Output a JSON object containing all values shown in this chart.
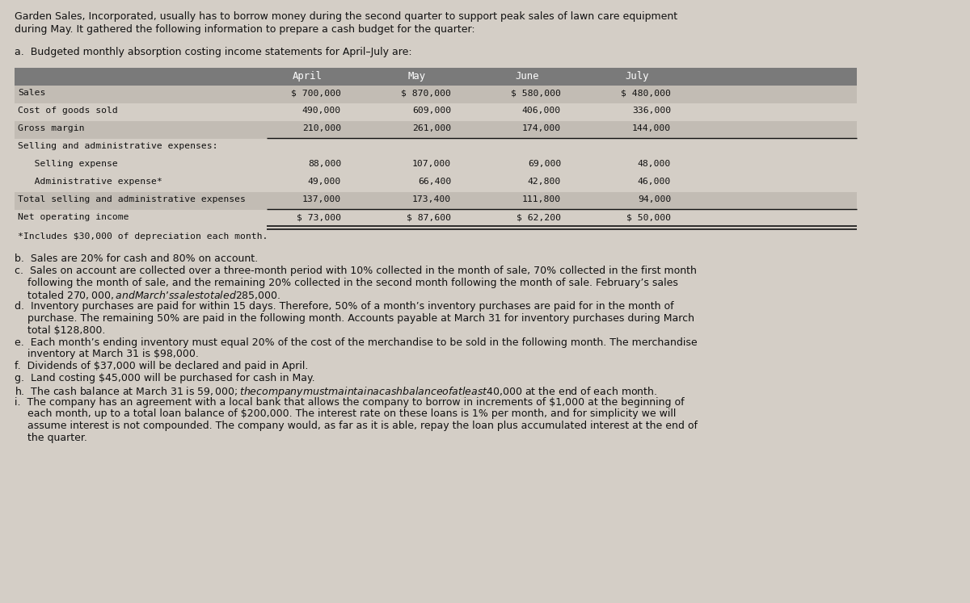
{
  "bg_color": "#d4cec6",
  "text_color": "#111111",
  "intro_line1": "Garden Sales, Incorporated, usually has to borrow money during the second quarter to support peak sales of lawn care equipment",
  "intro_line2": "during May. It gathered the following information to prepare a cash budget for the quarter:",
  "section_a_header": "a.  Budgeted monthly absorption costing income statements for April–July are:",
  "table_header_bg": "#7a7a7a",
  "table_alt_bg": "#c2bcb4",
  "table_row_bg": "#d4cec6",
  "table_months": [
    "April",
    "May",
    "June",
    "July"
  ],
  "table_rows": [
    [
      "Sales",
      "$ 700,000",
      "$ 870,000",
      "$ 580,000",
      "$ 480,000"
    ],
    [
      "Cost of goods sold",
      "490,000",
      "609,000",
      "406,000",
      "336,000"
    ],
    [
      "Gross margin",
      "210,000",
      "261,000",
      "174,000",
      "144,000"
    ],
    [
      "Selling and administrative expenses:",
      "",
      "",
      "",
      ""
    ],
    [
      "   Selling expense",
      "88,000",
      "107,000",
      "69,000",
      "48,000"
    ],
    [
      "   Administrative expense*",
      "49,000",
      "66,400",
      "42,800",
      "46,000"
    ],
    [
      "Total selling and administrative expenses",
      "137,000",
      "173,400",
      "111,800",
      "94,000"
    ],
    [
      "Net operating income",
      "$ 73,000",
      "$ 87,600",
      "$ 62,200",
      "$ 50,000"
    ]
  ],
  "row_bg_pattern": [
    "alt",
    "row",
    "alt",
    "row",
    "row",
    "row",
    "alt",
    "row"
  ],
  "underline_rows": [
    2,
    6
  ],
  "double_underline_rows": [
    7
  ],
  "footnote": "*Includes $30,000 of depreciation each month.",
  "bullets": [
    [
      "b.  Sales are 20% for cash and 80% on account."
    ],
    [
      "c.  Sales on account are collected over a three-month period with 10% collected in the month of sale, 70% collected in the first month",
      "    following the month of sale, and the remaining 20% collected in the second month following the month of sale. February’s sales",
      "    totaled $270,000, and March’s sales totaled $285,000."
    ],
    [
      "d.  Inventory purchases are paid for within 15 days. Therefore, 50% of a month’s inventory purchases are paid for in the month of",
      "    purchase. The remaining 50% are paid in the following month. Accounts payable at March 31 for inventory purchases during March",
      "    total $128,800."
    ],
    [
      "e.  Each month’s ending inventory must equal 20% of the cost of the merchandise to be sold in the following month. The merchandise",
      "    inventory at March 31 is $98,000."
    ],
    [
      "f.  Dividends of $37,000 will be declared and paid in April."
    ],
    [
      "g.  Land costing $45,000 will be purchased for cash in May."
    ],
    [
      "h.  The cash balance at March 31 is $59,000; the company must maintain a cash balance of at least $40,000 at the end of each month."
    ],
    [
      "i.  The company has an agreement with a local bank that allows the company to borrow in increments of $1,000 at the beginning of",
      "    each month, up to a total loan balance of $200,000. The interest rate on these loans is 1% per month, and for simplicity we will",
      "    assume interest is not compounded. The company would, as far as it is able, repay the loan plus accumulated interest at the end of",
      "    the quarter."
    ]
  ]
}
